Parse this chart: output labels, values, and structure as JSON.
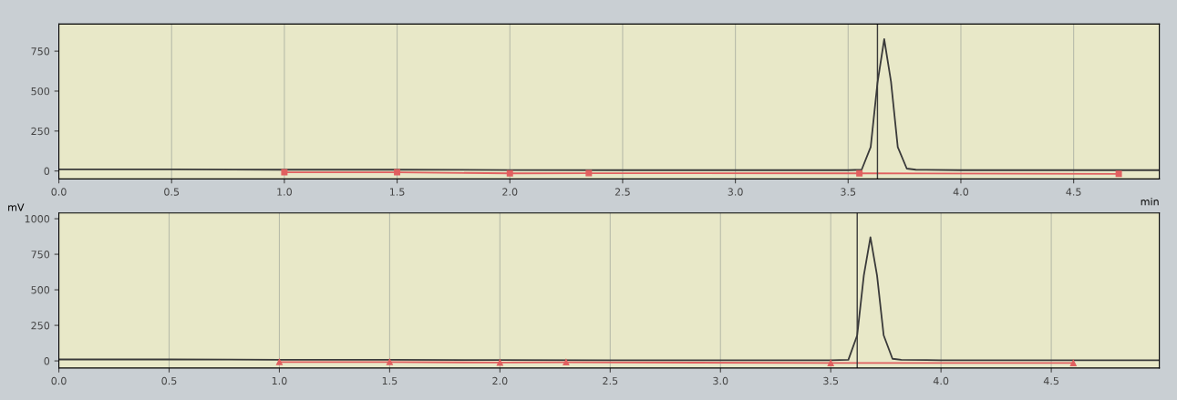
{
  "chart_data": [
    {
      "type": "line",
      "xlabel": "min",
      "xlim": [
        0,
        4.88
      ],
      "ylim": [
        -50,
        920
      ],
      "xticks": [
        {
          "value": 0,
          "label": "0.0"
        },
        0.5,
        {
          "value": 1,
          "label": "1.0"
        },
        1.5,
        {
          "value": 2,
          "label": "2.0"
        },
        2.5,
        {
          "value": 3,
          "label": "3.0"
        },
        3.5,
        {
          "value": 4,
          "label": "4.0"
        },
        4.5
      ],
      "yticks": [
        0,
        250,
        500,
        750
      ],
      "grid": "x",
      "legend": false,
      "series": [
        {
          "color": "#3a3a3a",
          "x": [
            0,
            0.5,
            1.0,
            1.5,
            2.0,
            2.5,
            3.0,
            3.5,
            3.56,
            3.6,
            3.63,
            3.66,
            3.69,
            3.72,
            3.76,
            3.8,
            4.0,
            4.5,
            4.88
          ],
          "values": [
            10,
            10,
            8,
            8,
            6,
            5,
            5,
            5,
            8,
            150,
            550,
            825,
            560,
            150,
            15,
            8,
            5,
            5,
            5
          ]
        },
        {
          "color": "#e06060",
          "marker": "square",
          "x": [
            1.0,
            1.5,
            2.0,
            2.35,
            3.55,
            4.7
          ],
          "values": [
            -8,
            -8,
            -15,
            -14,
            -15,
            -18
          ]
        }
      ],
      "ref_lines": [
        {
          "axis": "x",
          "value": 3.63,
          "color": "#3a3a3a"
        }
      ]
    },
    {
      "type": "line",
      "ylabel": "mV",
      "xlim": [
        0,
        4.99
      ],
      "ylim": [
        -50,
        1040
      ],
      "xticks": [
        {
          "value": 0,
          "label": "0.0"
        },
        0.5,
        {
          "value": 1,
          "label": "1.0"
        },
        1.5,
        {
          "value": 2,
          "label": "2.0"
        },
        2.5,
        {
          "value": 3,
          "label": "3.0"
        },
        3.5,
        {
          "value": 4,
          "label": "4.0"
        },
        4.5
      ],
      "yticks": [
        0,
        250,
        500,
        750,
        1000
      ],
      "grid": "x",
      "legend": false,
      "series": [
        {
          "color": "#3a3a3a",
          "x": [
            0,
            0.5,
            1.0,
            1.5,
            2.0,
            2.5,
            3.0,
            3.5,
            3.58,
            3.62,
            3.65,
            3.68,
            3.71,
            3.74,
            3.78,
            3.82,
            4.0,
            4.5,
            4.99
          ],
          "values": [
            10,
            10,
            8,
            8,
            6,
            5,
            5,
            5,
            8,
            180,
            600,
            870,
            600,
            180,
            15,
            8,
            5,
            5,
            5
          ]
        },
        {
          "color": "#e06060",
          "marker": "triangle",
          "x": [
            1.0,
            1.5,
            2.0,
            2.3,
            3.5,
            4.6
          ],
          "values": [
            -8,
            -8,
            -12,
            -10,
            -15,
            -15
          ]
        }
      ],
      "ref_lines": [
        {
          "axis": "x",
          "value": 3.62,
          "color": "#3a3a3a"
        }
      ]
    }
  ]
}
